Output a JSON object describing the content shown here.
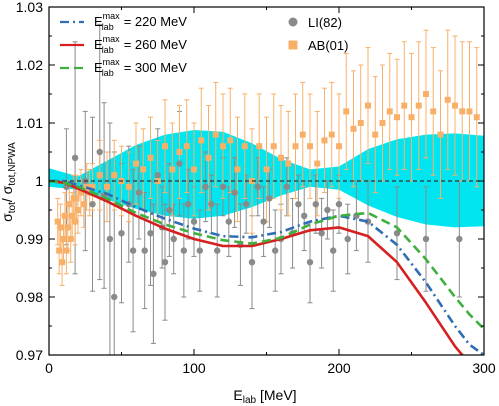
{
  "chart_data": {
    "type": "line",
    "xlabel": "E_lab [MeV]",
    "ylabel": "σ_tot / σ_tot,NPWA",
    "xlim": [
      0,
      300
    ],
    "ylim": [
      0.97,
      1.03
    ],
    "xticks": [
      "0",
      "100",
      "200",
      "300"
    ],
    "yticks": [
      "0.97",
      "0.98",
      "0.99",
      "1",
      "1.01",
      "1.02",
      "1.03"
    ],
    "reference_line": 1.0,
    "legend_position": "top",
    "band": {
      "color": "#00e5f0",
      "x": [
        0,
        20,
        40,
        60,
        80,
        100,
        120,
        140,
        160,
        180,
        200,
        220,
        240,
        260,
        280,
        300
      ],
      "upper": [
        1.0022,
        1.0008,
        1.0035,
        1.0062,
        1.008,
        1.0088,
        1.0085,
        1.0065,
        1.0038,
        1.002,
        1.0025,
        1.0055,
        1.0072,
        1.008,
        1.0082,
        1.0078
      ],
      "lower": [
        0.999,
        0.9985,
        0.9968,
        0.9952,
        0.994,
        0.9935,
        0.994,
        0.9955,
        0.9975,
        0.999,
        0.9985,
        0.9958,
        0.9938,
        0.9925,
        0.992,
        0.9922
      ]
    },
    "series": [
      {
        "name": "220 MeV",
        "style": "dashdot",
        "color": "#2f6db5",
        "x": [
          0,
          10,
          20,
          40,
          60,
          80,
          100,
          120,
          140,
          160,
          180,
          200,
          220,
          240,
          260,
          280,
          290,
          300
        ],
        "y": [
          1.0,
          1.0,
          0.9993,
          0.9978,
          0.9955,
          0.9935,
          0.9918,
          0.9905,
          0.9903,
          0.9912,
          0.993,
          0.994,
          0.993,
          0.989,
          0.9825,
          0.975,
          0.9718,
          0.97
        ]
      },
      {
        "name": "260 MeV",
        "style": "solid",
        "color": "#d62020",
        "x": [
          0,
          10,
          20,
          40,
          60,
          80,
          100,
          120,
          140,
          160,
          180,
          200,
          220,
          240,
          260,
          280,
          290,
          300
        ],
        "y": [
          1.0,
          0.9997,
          0.9987,
          0.9965,
          0.994,
          0.9918,
          0.99,
          0.9888,
          0.9888,
          0.99,
          0.9915,
          0.992,
          0.9905,
          0.986,
          0.979,
          0.9715,
          0.9685,
          0.967
        ]
      },
      {
        "name": "300 MeV",
        "style": "dashed",
        "color": "#3fb03f",
        "x": [
          0,
          10,
          20,
          40,
          60,
          80,
          100,
          120,
          140,
          160,
          180,
          200,
          220,
          240,
          260,
          280,
          290,
          300
        ],
        "y": [
          1.0,
          0.9997,
          0.999,
          0.997,
          0.9945,
          0.9925,
          0.991,
          0.9898,
          0.9892,
          0.9902,
          0.9925,
          0.994,
          0.9945,
          0.992,
          0.9865,
          0.98,
          0.977,
          0.9745
        ]
      }
    ],
    "data_sets": [
      {
        "name": "LI(82)",
        "marker": "circle",
        "color": "#8a8a8a",
        "points": [
          [
            12,
            0.999,
            0.01
          ],
          [
            18,
            1.004,
            0.02
          ],
          [
            25,
            1.0,
            0.012
          ],
          [
            30,
            0.996,
            0.015
          ],
          [
            35,
            1.005,
            0.022
          ],
          [
            38,
            0.9975,
            0.016
          ],
          [
            42,
            0.99,
            0.02
          ],
          [
            45,
            0.98,
            0.025
          ],
          [
            50,
            0.991,
            0.012
          ],
          [
            55,
            0.996,
            0.01
          ],
          [
            58,
            0.988,
            0.014
          ],
          [
            62,
            0.998,
            0.008
          ],
          [
            66,
            0.988,
            0.01
          ],
          [
            70,
            0.991,
            0.009
          ],
          [
            72,
            0.984,
            0.012
          ],
          [
            75,
            1.001,
            0.008
          ],
          [
            78,
            0.992,
            0.007
          ],
          [
            80,
            0.986,
            0.01
          ],
          [
            83,
            0.995,
            0.008
          ],
          [
            86,
            0.99,
            0.006
          ],
          [
            90,
            1.003,
            0.009
          ],
          [
            93,
            0.988,
            0.008
          ],
          [
            96,
            0.996,
            0.006
          ],
          [
            100,
            0.993,
            0.006
          ],
          [
            104,
            0.988,
            0.007
          ],
          [
            108,
            0.999,
            0.006
          ],
          [
            112,
            0.996,
            0.005
          ],
          [
            116,
            0.988,
            0.008
          ],
          [
            120,
            0.999,
            0.005
          ],
          [
            124,
            0.993,
            0.006
          ],
          [
            128,
            0.998,
            0.006
          ],
          [
            132,
            0.989,
            0.007
          ],
          [
            136,
            0.996,
            0.005
          ],
          [
            140,
            0.986,
            0.008
          ],
          [
            144,
            0.999,
            0.005
          ],
          [
            148,
            0.993,
            0.006
          ],
          [
            152,
            0.997,
            0.005
          ],
          [
            156,
            0.988,
            0.007
          ],
          [
            160,
            0.99,
            0.006
          ],
          [
            164,
            0.999,
            0.005
          ],
          [
            168,
            0.991,
            0.006
          ],
          [
            172,
            0.996,
            0.005
          ],
          [
            176,
            0.994,
            0.006
          ],
          [
            180,
            0.986,
            0.007
          ],
          [
            184,
            0.996,
            0.005
          ],
          [
            188,
            0.991,
            0.006
          ],
          [
            192,
            0.995,
            0.005
          ],
          [
            196,
            0.988,
            0.007
          ],
          [
            200,
            0.996,
            0.005
          ],
          [
            206,
            0.99,
            0.006
          ],
          [
            212,
            0.994,
            0.006
          ],
          [
            220,
            0.993,
            0.007
          ],
          [
            240,
            0.991,
            0.008
          ],
          [
            260,
            0.99,
            0.009
          ],
          [
            283,
            0.99,
            0.01
          ]
        ]
      },
      {
        "name": "AB(01)",
        "marker": "square",
        "color": "#f8b068",
        "points": [
          [
            6,
            0.993,
            0.004
          ],
          [
            7,
            0.988,
            0.004
          ],
          [
            8,
            0.992,
            0.004
          ],
          [
            9,
            0.986,
            0.004
          ],
          [
            10,
            0.99,
            0.004
          ],
          [
            11,
            0.994,
            0.004
          ],
          [
            12,
            0.988,
            0.004
          ],
          [
            13,
            0.992,
            0.004
          ],
          [
            14,
            0.996,
            0.004
          ],
          [
            15,
            0.99,
            0.004
          ],
          [
            16,
            0.994,
            0.004
          ],
          [
            17,
            0.997,
            0.004
          ],
          [
            18,
            0.993,
            0.004
          ],
          [
            19,
            0.997,
            0.004
          ],
          [
            20,
            0.995,
            0.004
          ],
          [
            22,
            0.998,
            0.004
          ],
          [
            24,
            0.996,
            0.004
          ],
          [
            26,
            0.999,
            0.004
          ],
          [
            28,
            0.998,
            0.004
          ],
          [
            30,
            0.999,
            0.004
          ],
          [
            35,
            1.001,
            0.006
          ],
          [
            40,
            0.999,
            0.006
          ],
          [
            45,
            1.001,
            0.006
          ],
          [
            50,
            1.0,
            0.006
          ],
          [
            55,
            0.999,
            0.006
          ],
          [
            60,
            1.003,
            0.007
          ],
          [
            65,
            1.002,
            0.007
          ],
          [
            70,
            1.004,
            0.007
          ],
          [
            75,
            1.0,
            0.007
          ],
          [
            80,
            1.006,
            0.008
          ],
          [
            85,
            1.002,
            0.008
          ],
          [
            90,
            1.005,
            0.008
          ],
          [
            95,
            1.006,
            0.008
          ],
          [
            100,
            1.002,
            0.008
          ],
          [
            105,
            1.007,
            0.009
          ],
          [
            110,
            1.004,
            0.009
          ],
          [
            115,
            1.008,
            0.009
          ],
          [
            120,
            1.006,
            0.009
          ],
          [
            125,
            1.007,
            0.009
          ],
          [
            130,
            1.002,
            0.009
          ],
          [
            135,
            1.006,
            0.009
          ],
          [
            140,
            1.0,
            0.009
          ],
          [
            145,
            1.006,
            0.009
          ],
          [
            150,
            1.002,
            0.009
          ],
          [
            155,
            1.006,
            0.009
          ],
          [
            160,
            1.004,
            0.009
          ],
          [
            165,
            1.003,
            0.009
          ],
          [
            170,
            1.006,
            0.009
          ],
          [
            175,
            1.008,
            0.009
          ],
          [
            180,
            1.006,
            0.009
          ],
          [
            185,
            1.003,
            0.009
          ],
          [
            190,
            1.007,
            0.009
          ],
          [
            195,
            1.008,
            0.009
          ],
          [
            200,
            1.006,
            0.009
          ],
          [
            205,
            1.012,
            0.01
          ],
          [
            210,
            1.009,
            0.01
          ],
          [
            215,
            1.01,
            0.01
          ],
          [
            220,
            1.013,
            0.01
          ],
          [
            225,
            1.008,
            0.01
          ],
          [
            230,
            1.01,
            0.01
          ],
          [
            235,
            1.012,
            0.01
          ],
          [
            240,
            1.011,
            0.01
          ],
          [
            245,
            1.013,
            0.011
          ],
          [
            250,
            1.011,
            0.011
          ],
          [
            255,
            1.013,
            0.011
          ],
          [
            260,
            1.015,
            0.011
          ],
          [
            265,
            1.012,
            0.011
          ],
          [
            270,
            1.008,
            0.011
          ],
          [
            275,
            1.014,
            0.012
          ],
          [
            280,
            1.013,
            0.012
          ],
          [
            285,
            1.012,
            0.012
          ],
          [
            290,
            1.012,
            0.012
          ],
          [
            295,
            1.011,
            0.012
          ]
        ]
      }
    ]
  }
}
